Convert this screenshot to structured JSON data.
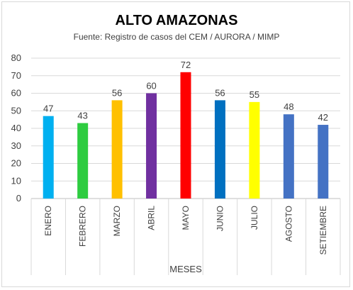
{
  "chart_data": {
    "type": "bar",
    "title": "ALTO AMAZONAS",
    "subtitle": "Fuente: Registro de casos del CEM / AURORA / MIMP",
    "xlabel": "MESES",
    "ylabel": "",
    "ylim": [
      0,
      80
    ],
    "yticks": [
      0,
      10,
      20,
      30,
      40,
      50,
      60,
      70,
      80
    ],
    "grid": true,
    "legend": "none",
    "categories": [
      "ENERO",
      "FEBRERO",
      "MARZO",
      "ABRIL",
      "MAYO",
      "JUNIO",
      "JULIO",
      "AGOSTO",
      "SETIEMBRE"
    ],
    "values": [
      47,
      43,
      56,
      60,
      72,
      56,
      55,
      48,
      42
    ],
    "colors": [
      "#00b0f0",
      "#2ecc40",
      "#ffc000",
      "#7030a0",
      "#ff0000",
      "#0070c0",
      "#ffff00",
      "#4472c4",
      "#4472c4"
    ]
  }
}
